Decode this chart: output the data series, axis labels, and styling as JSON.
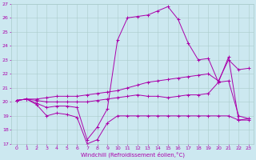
{
  "xlabel": "Windchill (Refroidissement éolien,°C)",
  "background_color": "#cce8f0",
  "line_color": "#aa00aa",
  "grid_color": "#aacccc",
  "xlim": [
    -0.5,
    23.5
  ],
  "ylim": [
    17,
    27
  ],
  "yticks": [
    17,
    18,
    19,
    20,
    21,
    22,
    23,
    24,
    25,
    26,
    27
  ],
  "xticks": [
    0,
    1,
    2,
    3,
    4,
    5,
    6,
    7,
    8,
    9,
    10,
    11,
    12,
    13,
    14,
    15,
    16,
    17,
    18,
    19,
    20,
    21,
    22,
    23
  ],
  "series": [
    {
      "x": [
        0,
        1,
        2,
        3,
        4,
        5,
        6,
        7,
        8,
        9,
        10,
        11,
        12,
        13,
        14,
        15,
        16,
        17,
        18,
        19,
        20,
        21,
        22,
        23
      ],
      "y": [
        20.1,
        20.2,
        19.8,
        19.0,
        19.2,
        19.1,
        18.9,
        17.0,
        17.3,
        18.5,
        19.0,
        19.0,
        19.0,
        19.0,
        19.0,
        19.0,
        19.0,
        19.0,
        19.0,
        19.0,
        19.0,
        19.0,
        18.7,
        18.8
      ]
    },
    {
      "x": [
        0,
        1,
        2,
        3,
        4,
        5,
        6,
        7,
        8,
        9,
        10,
        11,
        12,
        13,
        14,
        15,
        16,
        17,
        18,
        19,
        20,
        21,
        22,
        23
      ],
      "y": [
        20.1,
        20.2,
        19.9,
        19.6,
        19.7,
        19.7,
        19.6,
        17.3,
        18.2,
        19.5,
        24.4,
        26.0,
        26.1,
        26.2,
        26.5,
        26.8,
        25.9,
        24.2,
        23.0,
        23.1,
        21.4,
        23.2,
        18.7,
        18.7
      ]
    },
    {
      "x": [
        0,
        1,
        2,
        3,
        4,
        5,
        6,
        7,
        8,
        9,
        10,
        11,
        12,
        13,
        14,
        15,
        16,
        17,
        18,
        19,
        20,
        21,
        22,
        23
      ],
      "y": [
        20.1,
        20.2,
        20.2,
        20.3,
        20.4,
        20.4,
        20.4,
        20.5,
        20.6,
        20.7,
        20.8,
        21.0,
        21.2,
        21.4,
        21.5,
        21.6,
        21.7,
        21.8,
        21.9,
        22.0,
        21.5,
        23.0,
        22.3,
        22.4
      ]
    },
    {
      "x": [
        0,
        1,
        2,
        3,
        4,
        5,
        6,
        7,
        8,
        9,
        10,
        11,
        12,
        13,
        14,
        15,
        16,
        17,
        18,
        19,
        20,
        21,
        22,
        23
      ],
      "y": [
        20.1,
        20.2,
        20.1,
        20.0,
        20.0,
        20.0,
        20.0,
        20.0,
        20.1,
        20.2,
        20.3,
        20.4,
        20.5,
        20.4,
        20.4,
        20.3,
        20.4,
        20.5,
        20.5,
        20.6,
        21.4,
        21.5,
        19.0,
        18.8
      ]
    }
  ]
}
